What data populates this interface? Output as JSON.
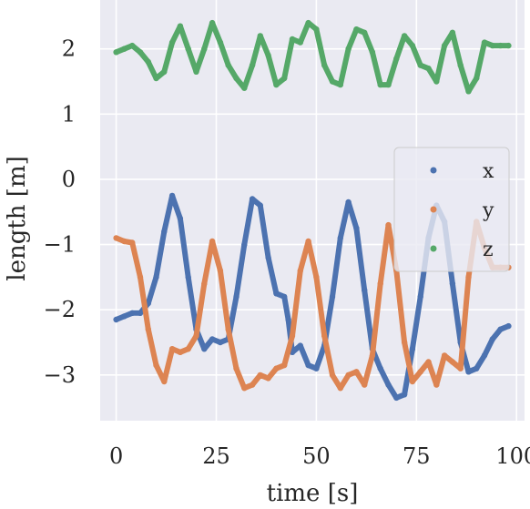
{
  "chart_data": {
    "type": "scatter",
    "xlabel": "time [s]",
    "ylabel": "length [m]",
    "xlim": [
      -4,
      102
    ],
    "ylim": [
      -3.7,
      2.75
    ],
    "xticks": [
      0,
      25,
      50,
      75,
      100
    ],
    "xtick_labels": [
      "0",
      "25",
      "50",
      "75",
      "100"
    ],
    "yticks": [
      2,
      1,
      0,
      -1,
      -2,
      -3
    ],
    "ytick_labels": [
      "2",
      "1",
      "0",
      "−1",
      "−2",
      "−3"
    ],
    "grid": true,
    "legend_position": "center-right",
    "series": [
      {
        "name": "x",
        "color": "#4c72b0",
        "x": [
          0,
          2,
          4,
          6,
          8,
          10,
          12,
          14,
          16,
          18,
          20,
          22,
          24,
          26,
          28,
          30,
          32,
          34,
          36,
          38,
          40,
          42,
          43,
          44,
          46,
          48,
          50,
          52,
          54,
          56,
          58,
          60,
          62,
          64,
          66,
          68,
          70,
          72,
          74,
          76,
          78,
          80,
          82,
          84,
          86,
          88,
          90,
          92,
          94,
          96,
          98
        ],
        "y": [
          -2.15,
          -2.1,
          -2.05,
          -2.05,
          -1.9,
          -1.5,
          -0.8,
          -0.25,
          -0.6,
          -1.5,
          -2.3,
          -2.6,
          -2.45,
          -2.5,
          -2.45,
          -1.8,
          -1.0,
          -0.3,
          -0.4,
          -1.2,
          -1.75,
          -1.8,
          -2.15,
          -2.65,
          -2.55,
          -2.85,
          -2.9,
          -2.55,
          -1.8,
          -0.9,
          -0.35,
          -0.75,
          -1.7,
          -2.6,
          -2.9,
          -3.15,
          -3.35,
          -3.3,
          -2.6,
          -1.8,
          -0.9,
          -0.4,
          -0.65,
          -1.6,
          -2.5,
          -2.95,
          -2.9,
          -2.7,
          -2.45,
          -2.3,
          -2.25
        ]
      },
      {
        "name": "y",
        "color": "#dd8452",
        "x": [
          0,
          2,
          4,
          6,
          8,
          10,
          12,
          14,
          16,
          18,
          20,
          22,
          24,
          26,
          28,
          30,
          32,
          34,
          36,
          38,
          40,
          42,
          44,
          46,
          48,
          50,
          52,
          54,
          56,
          58,
          60,
          62,
          64,
          66,
          68,
          70,
          72,
          74,
          76,
          78,
          80,
          82,
          84,
          86,
          88,
          90,
          92,
          94,
          96,
          98
        ],
        "y": [
          -0.9,
          -0.95,
          -0.97,
          -1.5,
          -2.3,
          -2.85,
          -3.1,
          -2.6,
          -2.65,
          -2.6,
          -2.4,
          -1.6,
          -0.95,
          -1.4,
          -2.3,
          -2.9,
          -3.2,
          -3.15,
          -3.0,
          -3.05,
          -2.9,
          -2.85,
          -2.4,
          -1.4,
          -0.95,
          -1.5,
          -2.4,
          -3.0,
          -3.2,
          -3.0,
          -2.95,
          -3.15,
          -2.7,
          -1.6,
          -0.7,
          -1.4,
          -2.5,
          -3.1,
          -2.95,
          -2.8,
          -3.15,
          -2.7,
          -2.8,
          -2.9,
          -1.5,
          -0.65,
          -1.05,
          -1.35,
          -1.35,
          -1.35
        ]
      },
      {
        "name": "z",
        "color": "#55a868",
        "x": [
          0,
          2,
          4,
          6,
          8,
          10,
          12,
          14,
          16,
          18,
          20,
          22,
          24,
          26,
          28,
          30,
          32,
          34,
          36,
          38,
          40,
          42,
          44,
          46,
          48,
          50,
          52,
          54,
          56,
          58,
          60,
          62,
          64,
          66,
          68,
          70,
          72,
          74,
          76,
          78,
          80,
          82,
          84,
          86,
          88,
          90,
          92,
          94,
          96,
          98
        ],
        "y": [
          1.95,
          2.0,
          2.05,
          1.95,
          1.8,
          1.55,
          1.65,
          2.1,
          2.35,
          2.0,
          1.65,
          2.0,
          2.4,
          2.1,
          1.75,
          1.55,
          1.4,
          1.75,
          2.2,
          1.9,
          1.45,
          1.55,
          2.15,
          2.1,
          2.4,
          2.3,
          1.75,
          1.5,
          1.45,
          2.0,
          2.3,
          2.25,
          1.95,
          1.45,
          1.45,
          1.85,
          2.2,
          2.05,
          1.75,
          1.7,
          1.5,
          2.05,
          2.25,
          1.75,
          1.35,
          1.55,
          2.1,
          2.05,
          2.05,
          2.05
        ]
      }
    ]
  }
}
